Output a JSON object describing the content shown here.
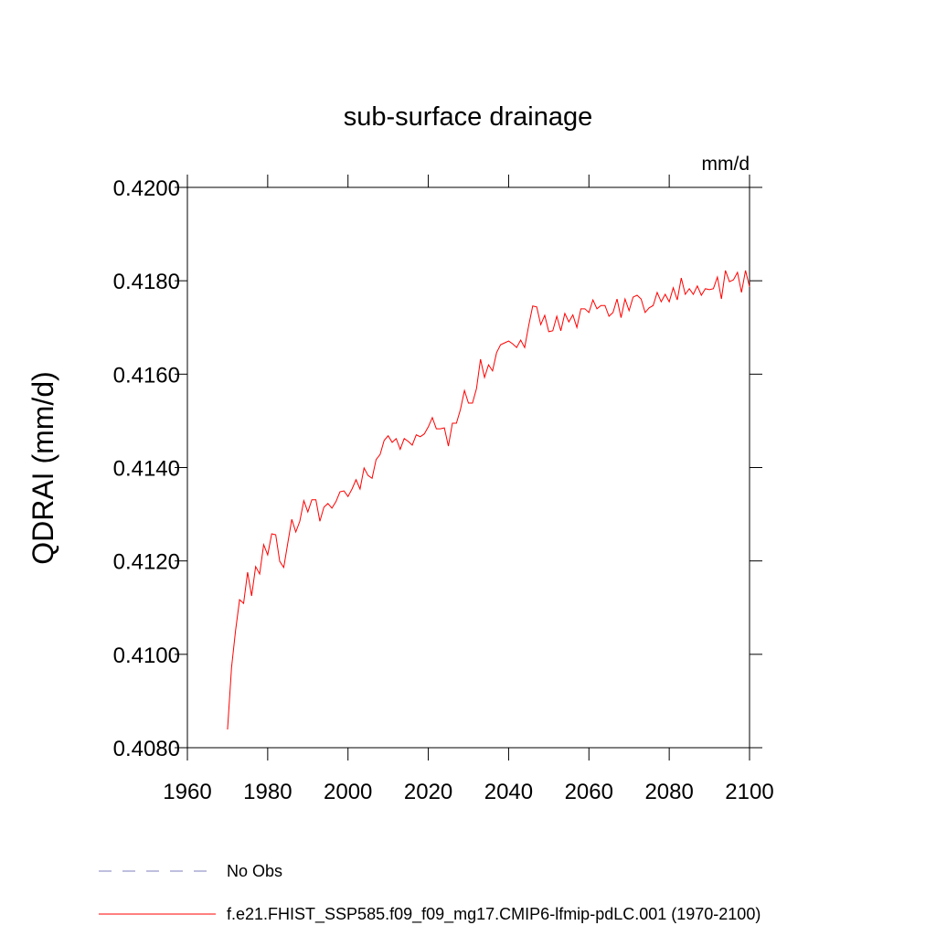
{
  "chart_data": {
    "type": "line",
    "title": "sub-surface drainage",
    "units_label": "mm/d",
    "y_label": "QDRAI  (mm/d)",
    "xlim": [
      1960,
      2100
    ],
    "xticks": [
      1960,
      1980,
      2000,
      2020,
      2040,
      2060,
      2080,
      2100
    ],
    "ylim": [
      0.408,
      0.42
    ],
    "yticks": [
      {
        "value": 0.408,
        "label": "0.4080"
      },
      {
        "value": 0.41,
        "label": "0.4100"
      },
      {
        "value": 0.412,
        "label": "0.4120"
      },
      {
        "value": 0.414,
        "label": "0.4140"
      },
      {
        "value": 0.416,
        "label": "0.4160"
      },
      {
        "value": 0.418,
        "label": "0.4180"
      },
      {
        "value": 0.42,
        "label": "0.4200"
      }
    ],
    "reference_line": {
      "name": "No Obs",
      "color": "#7f7fbf",
      "dashed": true
    },
    "x": [
      1970,
      1971,
      1972,
      1973,
      1974,
      1975,
      1976,
      1977,
      1978,
      1979,
      1980,
      1981,
      1982,
      1983,
      1984,
      1985,
      1986,
      1987,
      1988,
      1989,
      1990,
      1991,
      1992,
      1993,
      1994,
      1995,
      1996,
      1997,
      1998,
      1999,
      2000,
      2001,
      2002,
      2003,
      2004,
      2005,
      2006,
      2007,
      2008,
      2009,
      2010,
      2011,
      2012,
      2013,
      2014,
      2015,
      2016,
      2017,
      2018,
      2019,
      2020,
      2021,
      2022,
      2023,
      2024,
      2025,
      2026,
      2027,
      2028,
      2029,
      2030,
      2031,
      2032,
      2033,
      2034,
      2035,
      2036,
      2037,
      2038,
      2039,
      2040,
      2041,
      2042,
      2043,
      2044,
      2045,
      2046,
      2047,
      2048,
      2049,
      2050,
      2051,
      2052,
      2053,
      2054,
      2055,
      2056,
      2057,
      2058,
      2059,
      2060,
      2061,
      2062,
      2063,
      2064,
      2065,
      2066,
      2067,
      2068,
      2069,
      2070,
      2071,
      2072,
      2073,
      2074,
      2075,
      2076,
      2077,
      2078,
      2079,
      2080,
      2081,
      2082,
      2083,
      2084,
      2085,
      2086,
      2087,
      2088,
      2089,
      2090,
      2091,
      2092,
      2093,
      2094,
      2095,
      2096,
      2097,
      2098,
      2099,
      2100
    ],
    "series": [
      {
        "name": "f.e21.FHIST_SSP585.f09_f09_mg17.CMIP6-lfmip-pdLC.001 (1970-2100)",
        "color": "#ff0000",
        "values": [
          0.40839,
          0.40972,
          0.41051,
          0.41117,
          0.41109,
          0.41176,
          0.41125,
          0.41188,
          0.41172,
          0.41235,
          0.41213,
          0.41258,
          0.41256,
          0.41199,
          0.41186,
          0.41238,
          0.41289,
          0.41262,
          0.41285,
          0.41329,
          0.41305,
          0.41331,
          0.41331,
          0.41285,
          0.41315,
          0.41323,
          0.41313,
          0.41327,
          0.41348,
          0.4135,
          0.41338,
          0.41354,
          0.41374,
          0.41354,
          0.41399,
          0.41383,
          0.41377,
          0.41417,
          0.41428,
          0.41458,
          0.41468,
          0.41454,
          0.41462,
          0.41439,
          0.41462,
          0.41456,
          0.41448,
          0.4147,
          0.41466,
          0.41472,
          0.41487,
          0.41507,
          0.41483,
          0.41483,
          0.41485,
          0.41446,
          0.41495,
          0.41495,
          0.41524,
          0.41565,
          0.41538,
          0.41538,
          0.41569,
          0.41632,
          0.41593,
          0.4162,
          0.41607,
          0.41646,
          0.41663,
          0.41667,
          0.41671,
          0.41665,
          0.41657,
          0.41673,
          0.41657,
          0.41704,
          0.41746,
          0.41744,
          0.41706,
          0.41726,
          0.41691,
          0.41693,
          0.41724,
          0.41693,
          0.4173,
          0.41712,
          0.41727,
          0.417,
          0.4174,
          0.4174,
          0.41732,
          0.41759,
          0.4174,
          0.41747,
          0.41747,
          0.41724,
          0.41732,
          0.41761,
          0.41721,
          0.41761,
          0.41736,
          0.41765,
          0.41769,
          0.41761,
          0.41732,
          0.41742,
          0.41747,
          0.41775,
          0.41755,
          0.41771,
          0.41755,
          0.41785,
          0.41759,
          0.41806,
          0.41771,
          0.41783,
          0.41771,
          0.41789,
          0.41769,
          0.41783,
          0.41781,
          0.41783,
          0.41808,
          0.41761,
          0.41822,
          0.41798,
          0.41802,
          0.41818,
          0.41775,
          0.41822,
          0.41787
        ]
      }
    ]
  }
}
